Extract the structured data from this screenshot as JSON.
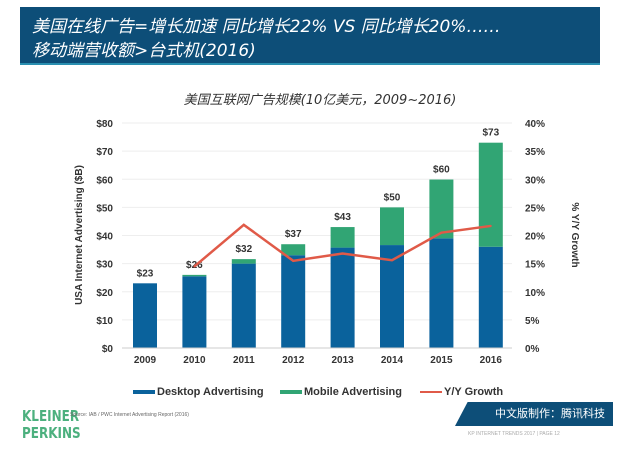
{
  "banner": {
    "line1": "美国在线广告=增长加速 同比增长22% VS 同比增长20%……",
    "line2": "移动端营收额>台式机(2016)"
  },
  "chart_data": {
    "type": "bar",
    "title": "美国互联网广告规模(10亿美元，2009~2016)",
    "categories": [
      "2009",
      "2010",
      "2011",
      "2012",
      "2013",
      "2014",
      "2015",
      "2016"
    ],
    "series": [
      {
        "name": "Desktop Advertising",
        "type": "stacked-bar",
        "color": "#0a629c",
        "values": [
          23,
          25.5,
          30,
          33,
          35.7,
          36.6,
          39,
          36
        ]
      },
      {
        "name": "Mobile Advertising",
        "type": "stacked-bar",
        "color": "#31a574",
        "values": [
          0,
          0.5,
          1.6,
          3.9,
          7.3,
          13.4,
          20.9,
          37
        ]
      },
      {
        "name": "Y/Y Growth",
        "type": "line",
        "axis": "right",
        "color": "#e05a48",
        "values": [
          null,
          14.5,
          21.9,
          15.5,
          16.8,
          15.6,
          20.5,
          21.7
        ]
      }
    ],
    "data_labels": [
      "$23",
      "$26",
      "$32",
      "$37",
      "$43",
      "$50",
      "$60",
      "$73"
    ],
    "ylabel": "USA Internet Advertising ($B)",
    "ylim": [
      0,
      80
    ],
    "yticks": [
      "$0",
      "$10",
      "$20",
      "$30",
      "$40",
      "$50",
      "$60",
      "$70",
      "$80"
    ],
    "y2label": "% Y/Y Growth",
    "y2lim": [
      0,
      40
    ],
    "y2ticks": [
      "0%",
      "5%",
      "10%",
      "15%",
      "20%",
      "25%",
      "30%",
      "35%",
      "40%"
    ],
    "grid": true,
    "legend": "bottom"
  },
  "footer": {
    "logo": "KLEINER PERKINS",
    "source": "Source: IAB / PWC Internet Advertising Report (2016)",
    "tencent": "中文版制作：腾讯科技",
    "page": "KP INTERNET TRENDS 2017 | PAGE 12"
  }
}
